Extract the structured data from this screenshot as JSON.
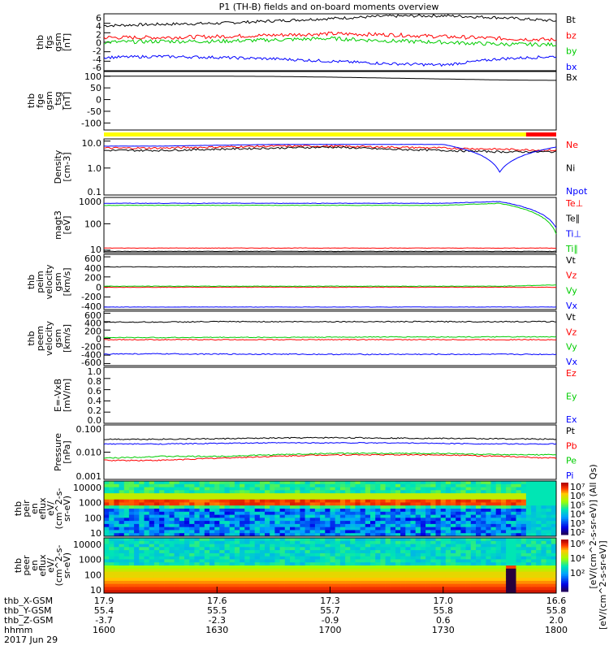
{
  "title": "P1 (TH-B) fields and on-board moments overview",
  "chart_data": [
    {
      "id": "fgs",
      "type": "line",
      "ylabel": [
        "thb",
        "fgs",
        "gsm",
        "[nT]"
      ],
      "ylim": [
        -6,
        6
      ],
      "scale": "linear",
      "ticks": [
        "6",
        "4",
        "2",
        "0",
        "-2",
        "-4",
        "-6"
      ],
      "tickvals": [
        6,
        4,
        2,
        0,
        -2,
        -4,
        -6
      ],
      "series": [
        {
          "name": "Bt",
          "color": "#000000",
          "values": [
            3.5,
            3.8,
            4.0,
            4.5,
            5.0,
            5.5,
            5.6,
            5.2,
            4.5
          ],
          "noise": 0.3
        },
        {
          "name": "bz",
          "color": "#ff0000",
          "values": [
            1.0,
            1.0,
            1.2,
            1.5,
            1.8,
            1.6,
            1.2,
            0.8,
            0.5
          ],
          "noise": 0.4
        },
        {
          "name": "by",
          "color": "#00cc00",
          "values": [
            0.0,
            0.2,
            0.2,
            0.5,
            0.8,
            0.3,
            0.0,
            -0.4,
            -0.5
          ],
          "noise": 0.4
        },
        {
          "name": "bx",
          "color": "#0000ff",
          "values": [
            -3.2,
            -3.0,
            -3.2,
            -3.5,
            -4.0,
            -4.5,
            -4.8,
            -3.5,
            -3.0
          ],
          "noise": 0.3
        }
      ]
    },
    {
      "id": "fge",
      "type": "line",
      "ylabel": [
        "thb",
        "fge",
        "gsm",
        "_tsg",
        "[nT]"
      ],
      "ylim": [
        -130,
        120
      ],
      "scale": "linear",
      "ticks": [
        "100",
        "50",
        "0",
        "-50",
        "-100"
      ],
      "tickvals": [
        100,
        50,
        0,
        -50,
        -100
      ],
      "series": [
        {
          "name": "Bx",
          "color": "#000000",
          "values": [
            100,
            100,
            100,
            99,
            96,
            92,
            88,
            84,
            82
          ],
          "noise": 0
        }
      ]
    },
    {
      "id": "density",
      "type": "line",
      "ylabel": [
        "Density",
        "[cm-3]"
      ],
      "ylim": [
        0.1,
        12
      ],
      "scale": "log",
      "ticks": [
        "10.0",
        "1.0",
        "0.1"
      ],
      "tickvals": [
        10,
        1,
        0.1
      ],
      "series": [
        {
          "name": "Ne",
          "color": "#ff0000",
          "values": [
            5.5,
            5.5,
            6.0,
            6.5,
            6.5,
            6.0,
            5.5,
            5.0,
            4.5
          ],
          "noise": 0.08
        },
        {
          "name": "Ni",
          "color": "#000000",
          "values": [
            4.5,
            4.5,
            5.0,
            5.5,
            6.0,
            5.0,
            4.5,
            4.0,
            4.0
          ],
          "noise": 0.08
        },
        {
          "name": "Npot",
          "color": "#0000ff",
          "values": [
            6.5,
            6.5,
            7.0,
            7.5,
            7.5,
            7.5,
            7.5,
            0.7,
            6.0
          ],
          "noise": 0.01
        }
      ]
    },
    {
      "id": "magt3",
      "type": "line",
      "ylabel": [
        "magt3",
        "[eV]"
      ],
      "ylim": [
        8,
        1000
      ],
      "scale": "log",
      "ticks": [
        "1000",
        "100",
        "10"
      ],
      "tickvals": [
        1000,
        100,
        10
      ],
      "series": [
        {
          "name": "Te⊥",
          "color": "#ff0000",
          "values": [
            12,
            12,
            12,
            12,
            12,
            12,
            12,
            12,
            12
          ],
          "noise": 0.02
        },
        {
          "name": "Te∥",
          "color": "#000000",
          "values": [
            9,
            9,
            9,
            9,
            9,
            9,
            9,
            9,
            9
          ],
          "noise": 0.02
        },
        {
          "name": "Ti⊥",
          "color": "#0000ff",
          "values": [
            600,
            600,
            600,
            600,
            600,
            600,
            600,
            700,
            70
          ],
          "noise": 0.02
        },
        {
          "name": "Ti∥",
          "color": "#00cc00",
          "values": [
            500,
            500,
            500,
            500,
            500,
            500,
            500,
            600,
            40
          ],
          "noise": 0.02
        }
      ]
    },
    {
      "id": "peim",
      "type": "line",
      "ylabel": [
        "thb",
        "peim",
        "velocity",
        "gsm",
        "[km/s]"
      ],
      "ylim": [
        -450,
        650
      ],
      "scale": "linear",
      "ticks": [
        "600",
        "400",
        "200",
        "0",
        "-200",
        "-400"
      ],
      "tickvals": [
        600,
        400,
        200,
        0,
        -200,
        -400
      ],
      "series": [
        {
          "name": "Vt",
          "color": "#000000",
          "values": [
            400,
            400,
            400,
            400,
            400,
            400,
            400,
            400,
            400
          ],
          "noise": 5
        },
        {
          "name": "Vz",
          "color": "#ff0000",
          "values": [
            -5,
            -5,
            -5,
            -5,
            -5,
            -5,
            -5,
            -5,
            -5
          ],
          "noise": 5
        },
        {
          "name": "Vy",
          "color": "#00cc00",
          "values": [
            15,
            15,
            15,
            15,
            15,
            15,
            15,
            15,
            40
          ],
          "noise": 5
        },
        {
          "name": "Vx",
          "color": "#0000ff",
          "values": [
            -400,
            -400,
            -400,
            -400,
            -400,
            -400,
            -400,
            -400,
            -400
          ],
          "noise": 3
        }
      ]
    },
    {
      "id": "peem",
      "type": "line",
      "ylabel": [
        "thb",
        "peem",
        "velocity",
        "gsm",
        "[km/s]"
      ],
      "ylim": [
        -650,
        650
      ],
      "scale": "linear",
      "ticks": [
        "600",
        "400",
        "200",
        "0",
        "-200",
        "-400",
        "-600"
      ],
      "tickvals": [
        600,
        400,
        200,
        0,
        -200,
        -400,
        -600
      ],
      "series": [
        {
          "name": "Vt",
          "color": "#000000",
          "values": [
            390,
            390,
            400,
            400,
            400,
            400,
            400,
            400,
            400
          ],
          "noise": 12
        },
        {
          "name": "Vz",
          "color": "#ff0000",
          "values": [
            -30,
            -30,
            -30,
            -30,
            -30,
            -30,
            -30,
            -30,
            -30
          ],
          "noise": 10
        },
        {
          "name": "Vy",
          "color": "#00cc00",
          "values": [
            20,
            20,
            25,
            25,
            30,
            35,
            35,
            35,
            35
          ],
          "noise": 10
        },
        {
          "name": "Vx",
          "color": "#0000ff",
          "values": [
            -370,
            -370,
            -375,
            -375,
            -380,
            -380,
            -380,
            -380,
            -380
          ],
          "noise": 12
        }
      ]
    },
    {
      "id": "efield",
      "type": "line",
      "ylabel": [
        "E=-VxB",
        "[mV/m]"
      ],
      "ylim": [
        0,
        1
      ],
      "scale": "linear",
      "ticks": [
        "1.0",
        "0.8",
        "0.6",
        "0.4",
        "0.2",
        "0.0"
      ],
      "tickvals": [
        1,
        0.8,
        0.6,
        0.4,
        0.2,
        0
      ],
      "series": [
        {
          "name": "Ez",
          "color": "#ff0000",
          "values": []
        },
        {
          "name": "Ey",
          "color": "#00cc00",
          "values": []
        },
        {
          "name": "Ex",
          "color": "#0000ff",
          "values": []
        }
      ]
    },
    {
      "id": "pressure",
      "type": "line",
      "ylabel": [
        "Pressure",
        "[nPa]"
      ],
      "ylim": [
        0.001,
        0.1
      ],
      "scale": "log",
      "ticks": [
        "0.100",
        "0.010",
        "0.001"
      ],
      "tickvals": [
        0.1,
        0.01,
        0.001
      ],
      "series": [
        {
          "name": "Pt",
          "color": "#000000",
          "values": [
            0.03,
            0.03,
            0.031,
            0.033,
            0.034,
            0.033,
            0.032,
            0.031,
            0.03
          ],
          "noise": 0.05
        },
        {
          "name": "Pb",
          "color": "#ff0000",
          "values": [
            0.005,
            0.005,
            0.006,
            0.007,
            0.008,
            0.008,
            0.008,
            0.007,
            0.006
          ],
          "noise": 0.05
        },
        {
          "name": "Pe",
          "color": "#00cc00",
          "values": [
            0.006,
            0.007,
            0.007,
            0.008,
            0.009,
            0.009,
            0.009,
            0.008,
            0.008
          ],
          "noise": 0.05
        },
        {
          "name": "Pi",
          "color": "#0000ff",
          "values": [
            0.02,
            0.02,
            0.021,
            0.022,
            0.022,
            0.022,
            0.021,
            0.02,
            0.02
          ],
          "noise": 0.04
        }
      ]
    }
  ],
  "spectrograms": [
    {
      "id": "peir",
      "ylabel": [
        "thb",
        "peir",
        "en",
        "eflux",
        "eV/",
        "(cm^2-s-",
        "sr-eV)"
      ],
      "ticks": [
        "10000",
        "1000",
        "100",
        "10"
      ],
      "colorbar_ticks": [
        "10⁷",
        "10⁶",
        "10⁵",
        "10⁴",
        "10³",
        "10²"
      ]
    },
    {
      "id": "peer",
      "ylabel": [
        "thb",
        "peer",
        "en",
        "eflux",
        "eV/",
        "(cm^2-s-",
        "sr-eV)"
      ],
      "ticks": [
        "10000",
        "1000",
        "100",
        "10"
      ],
      "colorbar_ticks": [
        "10⁶",
        "10⁴",
        "10²"
      ]
    }
  ],
  "colorbar_label": "[eV/(cm^2-s-sr-eV)]",
  "colorbar_label2": "[eV/(cm^2-s-sr-eV)] (All Qs)",
  "mode_bar": {
    "colors": [
      "#ffff00",
      "#ff0000"
    ],
    "switch_time": "1752"
  },
  "xaxis": {
    "rows": [
      {
        "label": "thb_X-GSM",
        "values": [
          "17.9",
          "17.6",
          "17.3",
          "17.0",
          "16.6"
        ]
      },
      {
        "label": "thb_Y-GSM",
        "values": [
          "55.4",
          "55.5",
          "55.7",
          "55.8",
          "55.8"
        ]
      },
      {
        "label": "thb_Z-GSM",
        "values": [
          "-3.7",
          "-2.3",
          "-0.9",
          "0.6",
          "2.0"
        ]
      },
      {
        "label": "hhmm",
        "values": [
          "1600",
          "1630",
          "1700",
          "1730",
          "1800"
        ]
      }
    ],
    "date": "2017 Jun 29"
  }
}
